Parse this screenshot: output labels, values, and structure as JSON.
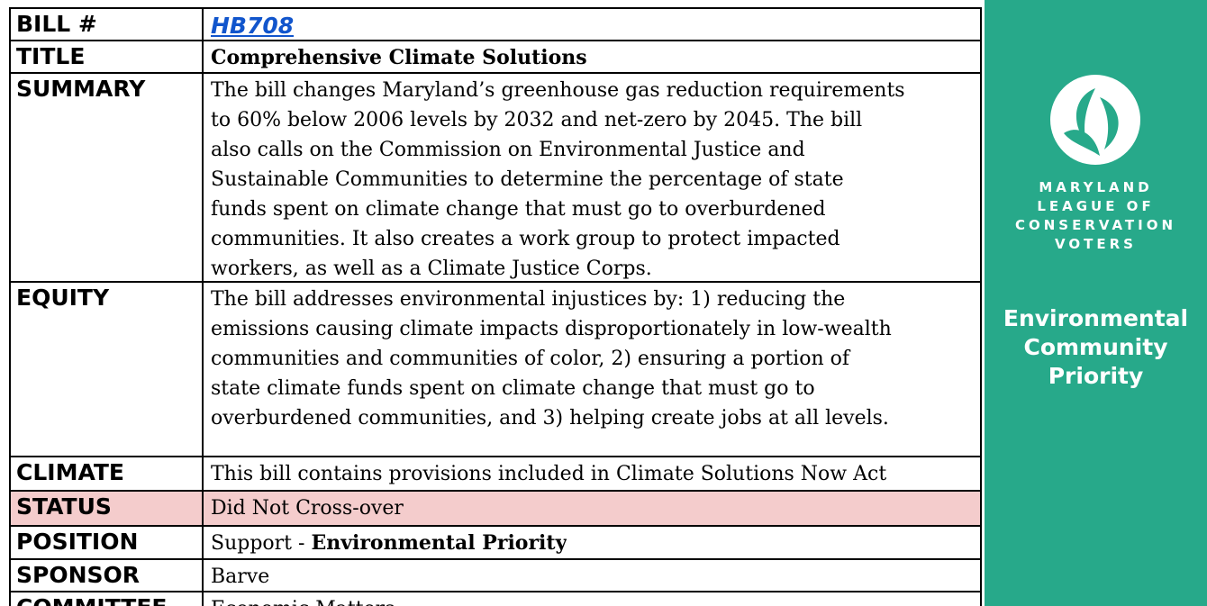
{
  "table": {
    "rows": [
      {
        "label": "BILL #",
        "value": "HB708"
      },
      {
        "label": "TITLE",
        "value": "Comprehensive Climate Solutions"
      },
      {
        "label": "SUMMARY",
        "lines": [
          "The bill changes Maryland’s greenhouse gas reduction requirements",
          "to 60% below 2006 levels by 2032 and net-zero by 2045.  The bill",
          "also calls on the Commission on Environmental Justice and",
          "Sustainable Communities to determine the percentage of state",
          "funds spent on climate change that must go to overburdened",
          "communities. It also creates a work group to protect impacted",
          "workers, as well as a Climate Justice Corps."
        ]
      },
      {
        "label": "EQUITY",
        "lines": [
          "The bill addresses environmental injustices by: 1) reducing the",
          "emissions causing climate impacts disproportionately in low-wealth",
          "communities and communities of color, 2) ensuring a portion of",
          "state climate funds spent on climate change that must go to",
          "overburdened communities, and 3) helping create jobs at all levels."
        ]
      },
      {
        "label": "CLIMATE",
        "value": "This bill contains provisions included in Climate Solutions Now Act"
      },
      {
        "label": "STATUS",
        "value": "Did Not Cross-over"
      },
      {
        "label": "POSITION",
        "value": "Support - ",
        "bold": "Environmental Priority"
      },
      {
        "label": "SPONSOR",
        "value": "Barve"
      },
      {
        "label": "COMMITTEE",
        "value": "Economic Matters"
      }
    ]
  },
  "sidebar": {
    "org": [
      "MARYLAND",
      "LEAGUE OF",
      "CONSERVATION",
      "VOTERS"
    ],
    "badge": [
      "Environmental",
      "Community",
      "Priority"
    ]
  }
}
